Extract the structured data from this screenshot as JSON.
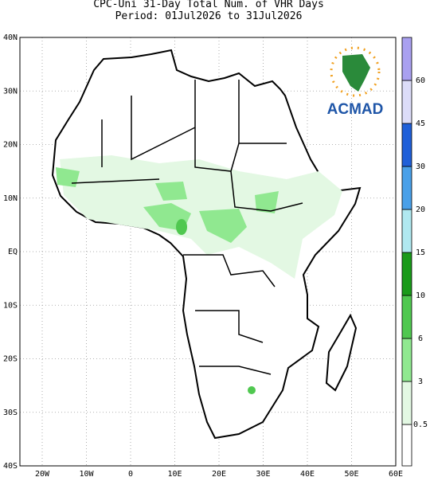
{
  "header": {
    "title": "CPC-Uni 31-Day Total Num. of VHR Days",
    "subtitle": "Period: 01Jul2026 to 31Jul2026"
  },
  "map": {
    "lat_labels": [
      "40N",
      "30N",
      "20N",
      "10N",
      "EQ",
      "10S",
      "20S",
      "30S",
      "40S"
    ],
    "lon_labels": [
      "20W",
      "10W",
      "0",
      "10E",
      "20E",
      "30E",
      "40E",
      "50E",
      "60E"
    ]
  },
  "colorbar": {
    "labels": [
      "0.5",
      "3",
      "6",
      "10",
      "15",
      "20",
      "30",
      "45",
      "60"
    ]
  },
  "logo": {
    "text": "ACMAD"
  }
}
